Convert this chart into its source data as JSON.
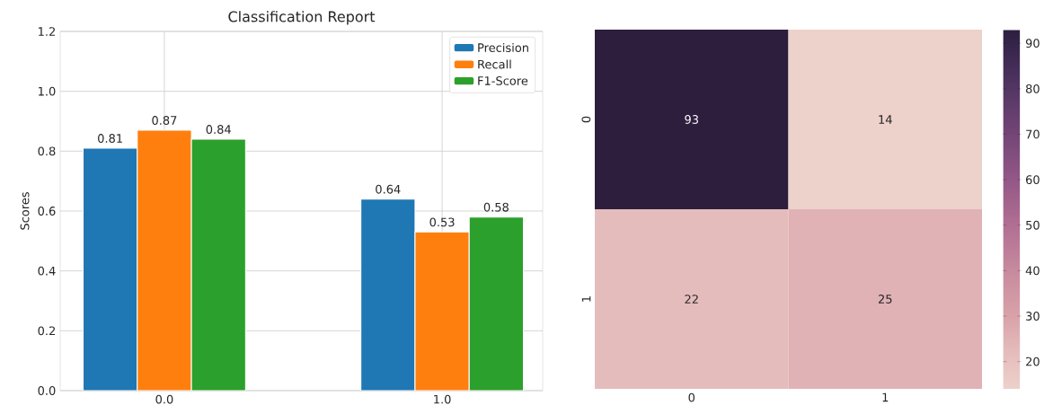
{
  "chart_data": [
    {
      "type": "bar",
      "title": "Classification Report",
      "ylabel": "Scores",
      "categories": [
        "0.0",
        "1.0"
      ],
      "series": [
        {
          "name": "Precision",
          "color": "#1f77b4",
          "values": [
            0.81,
            0.64
          ]
        },
        {
          "name": "Recall",
          "color": "#ff7f0e",
          "values": [
            0.87,
            0.53
          ]
        },
        {
          "name": "F1-Score",
          "color": "#2ca02c",
          "values": [
            0.84,
            0.58
          ]
        }
      ],
      "ylim": [
        0,
        1.2
      ],
      "yticks": [
        {
          "value": 0,
          "label": "0.0"
        },
        0.2,
        0.4,
        0.6,
        0.8,
        {
          "value": 1,
          "label": "1.0"
        },
        1.2
      ],
      "data_labels": true,
      "grid": true,
      "legend": "top right"
    },
    {
      "type": "heatmap",
      "categories": [
        "0",
        "1"
      ],
      "y_categories": [
        "0",
        "1"
      ],
      "cells": [
        [
          93,
          14
        ],
        [
          22,
          25
        ]
      ],
      "clim": [
        14,
        93
      ],
      "cticks": [
        20,
        30,
        40,
        50,
        60,
        70,
        80,
        90
      ],
      "data_labels": true
    }
  ]
}
